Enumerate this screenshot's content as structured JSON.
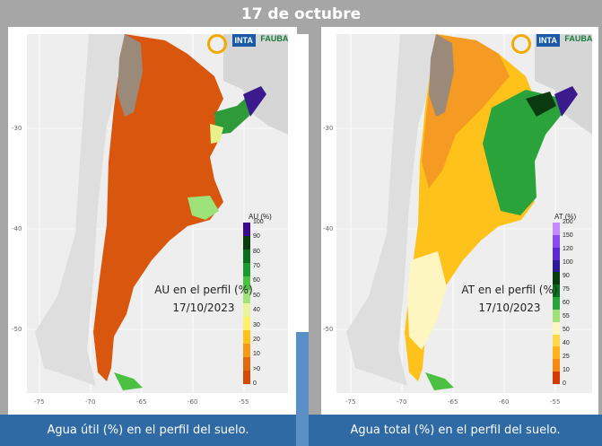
{
  "title": "17 de octubre",
  "panels": [
    {
      "id": "au",
      "legend_title": "AU (%)",
      "legend_ticks": [
        "100",
        "90",
        "80",
        "70",
        "60",
        "50",
        "40",
        "30",
        "20",
        "10",
        ">0",
        "0"
      ],
      "legend_colors": [
        "#3a0a8c",
        "#0a3a10",
        "#0d6d1f",
        "#1b9a2e",
        "#4cc043",
        "#9fe27a",
        "#e9f59a",
        "#fff06a",
        "#ffc21a",
        "#f59a12",
        "#e06a10",
        "#d44a08"
      ],
      "map_label": "AU en el perfil (%)",
      "map_date": "17/10/2023",
      "caption": "Agua útil (%) en el perfil del suelo."
    },
    {
      "id": "at",
      "legend_title": "AT (%)",
      "legend_ticks": [
        "200",
        "150",
        "120",
        "100",
        "90",
        "75",
        "60",
        "55",
        "50",
        "40",
        "25",
        "10",
        "0"
      ],
      "legend_colors": [
        "#c48bff",
        "#8a4bf0",
        "#5a2ad0",
        "#2a1a98",
        "#0a3a10",
        "#0d6d1f",
        "#2aa43a",
        "#9fe27a",
        "#fdf6c0",
        "#ffd84a",
        "#ffb21a",
        "#f58a12",
        "#d43a08"
      ],
      "map_label": "AT en el perfil (%)",
      "map_date": "17/10/2023",
      "caption": "Agua total (%) en el perfil del suelo."
    }
  ],
  "axes": {
    "x_ticks": [
      "-75",
      "-70",
      "-65",
      "-60",
      "-55"
    ],
    "y_ticks": [
      "-30",
      "-40",
      "-50"
    ]
  },
  "logos": {
    "inta": "INTA",
    "fauba": "FAUBA"
  }
}
